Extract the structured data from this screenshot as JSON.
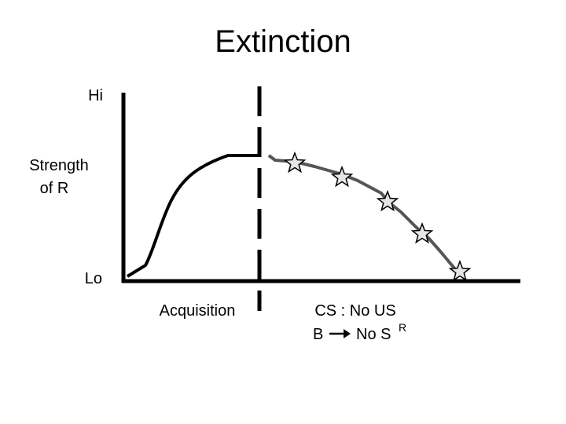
{
  "title": "Extinction",
  "y_axis": {
    "high": "Hi",
    "label": [
      "Strength",
      "of R"
    ],
    "low": "Lo"
  },
  "phases": [
    {
      "label": "Acquisition"
    },
    {
      "label": "CS : No US",
      "rule": {
        "response": "B",
        "outcome": "No S",
        "outcome_sup": "R"
      }
    }
  ]
}
